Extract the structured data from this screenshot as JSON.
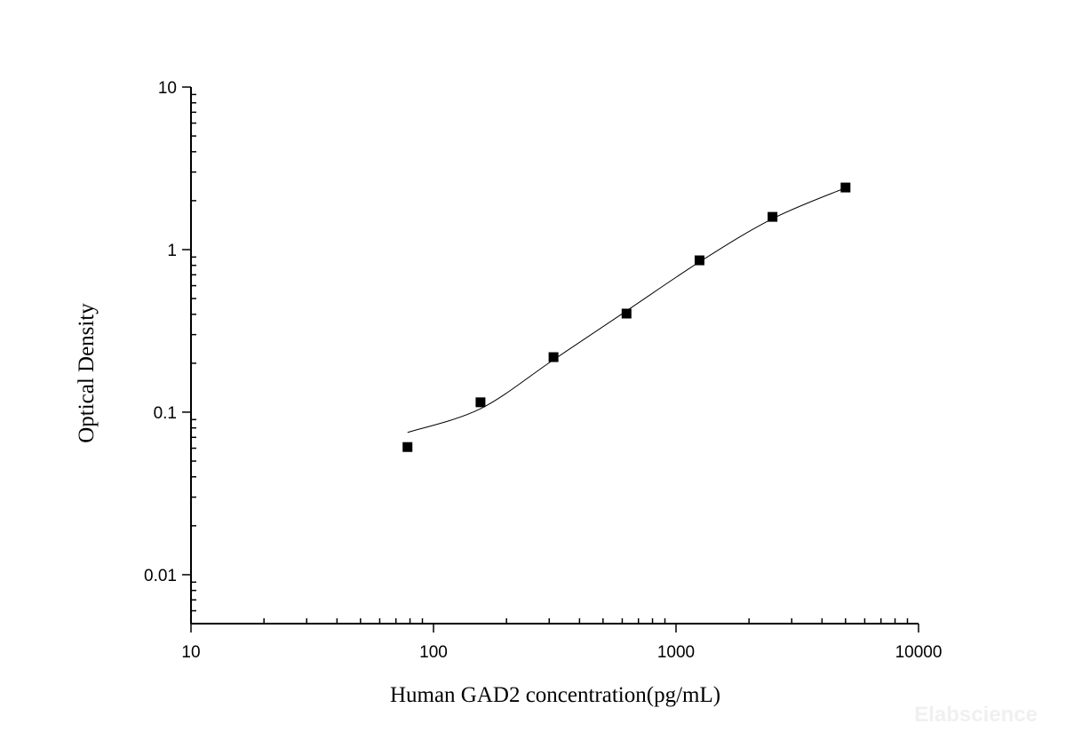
{
  "chart_data": {
    "type": "scatter",
    "xlabel": "Human GAD2 concentration(pg/mL)",
    "ylabel": "Optical Density",
    "xscale": "log",
    "yscale": "log",
    "xlim": [
      10,
      10000
    ],
    "ylim": [
      0.005,
      10
    ],
    "xticks": [
      "10",
      "100",
      "1000",
      "10000"
    ],
    "yticks": [
      "0.01",
      "0.1",
      "1",
      "10"
    ],
    "grid": false,
    "series": [
      {
        "kind": "points",
        "marker": "square",
        "color": "#000000",
        "x": [
          78.125,
          156.25,
          312.5,
          625,
          1250,
          2500,
          5000
        ],
        "y": [
          0.061,
          0.115,
          0.218,
          0.404,
          0.859,
          1.59,
          2.41
        ]
      },
      {
        "kind": "fit-curve",
        "color": "#000000",
        "x": [
          78.125,
          156.25,
          312.5,
          625,
          1250,
          2500,
          5000
        ],
        "y": [
          0.075,
          0.105,
          0.21,
          0.42,
          0.84,
          1.55,
          2.4
        ]
      }
    ],
    "watermark": "Elabscience"
  }
}
